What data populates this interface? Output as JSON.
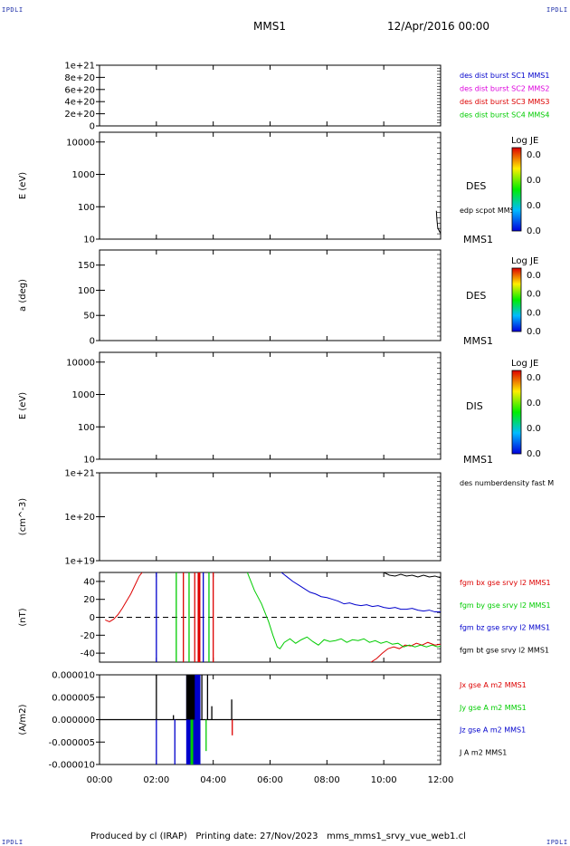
{
  "header": {
    "mission": "MMS1",
    "date": "12/Apr/2016 00:00",
    "corner_tl": "IPDLI",
    "corner_tr": "IPDLI",
    "corner_bl": "IPDLI",
    "corner_br": "IPDLI"
  },
  "footer": {
    "produced_by": "Produced by cl (IRAP)",
    "printing_date": "Printing date: 27/Nov/2023",
    "filename": "mms_mms1_srvy_vue_web1.cl"
  },
  "time_axis": {
    "ticks": [
      "00:00",
      "02:00",
      "04:00",
      "06:00",
      "08:00",
      "10:00",
      "12:00"
    ],
    "range_hours": [
      0,
      12
    ]
  },
  "colors": {
    "red": "#dd0000",
    "green": "#00cc00",
    "blue": "#0000cc",
    "magenta": "#dd00dd",
    "black": "#000000"
  },
  "chart_data": [
    {
      "id": "p1",
      "type": "line",
      "ylabel": "",
      "yticks": [
        "1e+21",
        "8e+20",
        "6e+20",
        "4e+20",
        "2e+20",
        "0"
      ],
      "ylim": [
        0,
        1e+21
      ],
      "dashed_zero": true,
      "legend": [
        {
          "label": "des dist burst SC1 MMS1",
          "color": "#0000cc"
        },
        {
          "label": "des dist burst SC2 MMS2",
          "color": "#dd00dd"
        },
        {
          "label": "des dist burst SC3 MMS3",
          "color": "#dd0000"
        },
        {
          "label": "des dist burst SC4 MMS4",
          "color": "#00cc00"
        }
      ]
    },
    {
      "id": "p2",
      "type": "heatmap",
      "scale": "log",
      "ylabel": "E (eV)",
      "yticks": [
        "10000",
        "1000",
        "100",
        "10"
      ],
      "ylim": [
        10,
        20000
      ],
      "label": "DES",
      "sublabel": "MMS1",
      "extra_label": "edp scpot MMS1",
      "colorbar": {
        "title": "Log JE",
        "ticks": [
          "0.0",
          "0.0",
          "0.0",
          "0.0"
        ]
      },
      "scpot_line": [
        [
          11.85,
          75
        ],
        [
          11.87,
          40
        ],
        [
          11.9,
          22
        ],
        [
          11.95,
          18
        ],
        [
          12.0,
          15
        ]
      ]
    },
    {
      "id": "p3",
      "type": "heatmap",
      "ylabel": "a (deg)",
      "yticks": [
        "150",
        "100",
        "50",
        "0"
      ],
      "ylim": [
        0,
        180
      ],
      "label": "DES",
      "sublabel": "MMS1",
      "colorbar": {
        "title": "Log JE",
        "ticks": [
          "0.0",
          "0.0",
          "0.0",
          "0.0"
        ]
      }
    },
    {
      "id": "p4",
      "type": "heatmap",
      "scale": "log",
      "ylabel": "E (eV)",
      "yticks": [
        "10000",
        "1000",
        "100",
        "10"
      ],
      "ylim": [
        10,
        20000
      ],
      "label": "DIS",
      "sublabel": "MMS1",
      "colorbar": {
        "title": "Log JE",
        "ticks": [
          "0.0",
          "0.0",
          "0.0",
          "0.0"
        ]
      }
    },
    {
      "id": "p5",
      "type": "line",
      "scale": "log",
      "ylabel": "(cm^-3)",
      "yticks": [
        "1e+21",
        "1e+20",
        "1e+19"
      ],
      "ylim": [
        1e+19,
        1e+21
      ],
      "legend": [
        {
          "label": "des numberdensity fast M",
          "color": "#000000"
        }
      ]
    },
    {
      "id": "p6",
      "type": "line",
      "ylabel": "(nT)",
      "yticks": [
        "40",
        "20",
        "0",
        "-20",
        "-40"
      ],
      "ylim": [
        -50,
        50
      ],
      "dashed_zero": true,
      "legend": [
        {
          "label": "fgm bx gse srvy l2 MMS1",
          "color": "#dd0000"
        },
        {
          "label": "fgm by gse srvy l2 MMS1",
          "color": "#00cc00"
        },
        {
          "label": "fgm bz gse srvy l2 MMS1",
          "color": "#0000cc"
        },
        {
          "label": "fgm bt gse srvy l2 MMS1",
          "color": "#000000"
        }
      ],
      "series": [
        {
          "name": "fgm bx gse srvy l2 MMS1",
          "color": "#dd0000",
          "segments": [
            [
              [
                0.2,
                -3
              ],
              [
                0.35,
                -5
              ],
              [
                0.5,
                -2
              ],
              [
                0.65,
                3
              ],
              [
                0.8,
                10
              ],
              [
                0.95,
                18
              ],
              [
                1.1,
                26
              ],
              [
                1.25,
                36
              ],
              [
                1.4,
                46
              ],
              [
                1.5,
                50
              ]
            ],
            [
              [
                9.55,
                -50
              ],
              [
                9.75,
                -46
              ],
              [
                9.95,
                -40
              ],
              [
                10.15,
                -35
              ],
              [
                10.35,
                -33
              ],
              [
                10.55,
                -35
              ],
              [
                10.75,
                -31
              ],
              [
                10.95,
                -32
              ],
              [
                11.15,
                -29
              ],
              [
                11.35,
                -31
              ],
              [
                11.55,
                -28
              ],
              [
                11.8,
                -31
              ],
              [
                12.0,
                -30
              ]
            ]
          ]
        },
        {
          "name": "fgm by gse srvy l2 MMS1",
          "color": "#00cc00",
          "segments": [
            [
              [
                5.2,
                50
              ],
              [
                5.45,
                30
              ],
              [
                5.7,
                15
              ],
              [
                5.95,
                -5
              ],
              [
                6.1,
                -20
              ],
              [
                6.25,
                -33
              ],
              [
                6.35,
                -35
              ],
              [
                6.5,
                -28
              ],
              [
                6.7,
                -24
              ],
              [
                6.9,
                -29
              ],
              [
                7.1,
                -25
              ],
              [
                7.3,
                -22
              ],
              [
                7.5,
                -27
              ],
              [
                7.7,
                -31
              ],
              [
                7.9,
                -25
              ],
              [
                8.1,
                -27
              ],
              [
                8.3,
                -26
              ],
              [
                8.5,
                -24
              ],
              [
                8.7,
                -28
              ],
              [
                8.9,
                -25
              ],
              [
                9.1,
                -26
              ],
              [
                9.3,
                -24
              ],
              [
                9.5,
                -28
              ],
              [
                9.7,
                -26
              ],
              [
                9.9,
                -29
              ],
              [
                10.1,
                -27
              ],
              [
                10.3,
                -30
              ],
              [
                10.5,
                -29
              ],
              [
                10.7,
                -33
              ],
              [
                10.9,
                -31
              ],
              [
                11.1,
                -33
              ],
              [
                11.3,
                -31
              ],
              [
                11.5,
                -33
              ],
              [
                11.7,
                -31
              ],
              [
                11.9,
                -33
              ],
              [
                12.0,
                -32
              ]
            ]
          ]
        },
        {
          "name": "fgm bz gse srvy l2 MMS1",
          "color": "#0000cc",
          "segments": [
            [
              [
                6.4,
                50
              ],
              [
                6.6,
                45
              ],
              [
                6.8,
                40
              ],
              [
                7.0,
                36
              ],
              [
                7.2,
                32
              ],
              [
                7.4,
                28
              ],
              [
                7.6,
                26
              ],
              [
                7.8,
                23
              ],
              [
                8.0,
                22
              ],
              [
                8.2,
                20
              ],
              [
                8.4,
                18
              ],
              [
                8.6,
                15
              ],
              [
                8.8,
                16
              ],
              [
                9.0,
                14
              ],
              [
                9.2,
                13
              ],
              [
                9.4,
                14
              ],
              [
                9.6,
                12
              ],
              [
                9.8,
                13
              ],
              [
                10.0,
                11
              ],
              [
                10.2,
                10
              ],
              [
                10.4,
                11
              ],
              [
                10.6,
                9
              ],
              [
                10.8,
                9
              ],
              [
                11.0,
                10
              ],
              [
                11.2,
                8
              ],
              [
                11.4,
                7
              ],
              [
                11.6,
                8
              ],
              [
                11.8,
                6
              ],
              [
                12.0,
                6
              ]
            ]
          ]
        },
        {
          "name": "fgm bt gse srvy l2 MMS1",
          "color": "#000000",
          "segments": [
            [
              [
                10.0,
                50
              ],
              [
                10.2,
                47
              ],
              [
                10.4,
                46
              ],
              [
                10.6,
                48
              ],
              [
                10.8,
                46
              ],
              [
                11.0,
                47
              ],
              [
                11.2,
                45
              ],
              [
                11.4,
                47
              ],
              [
                11.6,
                45
              ],
              [
                11.8,
                46
              ],
              [
                12.0,
                44
              ]
            ]
          ]
        }
      ],
      "vertical_spikes": [
        {
          "x": 2.0,
          "color": "#0000cc"
        },
        {
          "x": 2.7,
          "color": "#00cc00"
        },
        {
          "x": 2.95,
          "color": "#dd0000"
        },
        {
          "x": 3.15,
          "color": "#00cc00"
        },
        {
          "x": 3.35,
          "color": "#dd0000"
        },
        {
          "x": 3.5,
          "color": "#dd0000"
        },
        {
          "x": 3.65,
          "color": "#0000cc"
        },
        {
          "x": 3.85,
          "color": "#00cc00"
        },
        {
          "x": 4.0,
          "color": "#dd0000"
        }
      ]
    },
    {
      "id": "p7",
      "type": "line",
      "ylabel": "(A/m2)",
      "yticks": [
        "0.000010",
        "0.000005",
        "0.000000",
        "-0.000005",
        "-0.000010"
      ],
      "ylim": [
        -1e-05,
        1e-05
      ],
      "legend": [
        {
          "label": "Jx gse A m2 MMS1",
          "color": "#dd0000"
        },
        {
          "label": "Jy gse A m2 MMS1",
          "color": "#00cc00"
        },
        {
          "label": "Jz gse A m2 MMS1",
          "color": "#0000cc"
        },
        {
          "label": "J A m2 MMS1",
          "color": "#000000"
        }
      ],
      "spikes": [
        {
          "x": 2.0,
          "y": 1e-05,
          "color": "#000000"
        },
        {
          "x": 2.0,
          "y": -1e-05,
          "color": "#0000cc"
        },
        {
          "x": 2.6,
          "y": 1e-06,
          "color": "#000000"
        },
        {
          "x": 2.65,
          "y": -1e-05,
          "color": "#0000cc"
        },
        {
          "x": 3.2,
          "y": 1e-05,
          "color": "#000000"
        },
        {
          "x": 3.6,
          "y": 1e-05,
          "color": "#000000"
        },
        {
          "x": 3.8,
          "y": 1e-05,
          "color": "#000000"
        },
        {
          "x": 3.95,
          "y": 3e-06,
          "color": "#000000"
        },
        {
          "x": 3.75,
          "y": -7e-06,
          "color": "#00cc00"
        },
        {
          "x": 4.65,
          "y": 4.5e-06,
          "color": "#000000"
        },
        {
          "x": 4.67,
          "y": -3.5e-06,
          "color": "#dd0000"
        }
      ],
      "bands": [
        {
          "x0": 3.05,
          "x1": 3.55,
          "y0": -1e-05,
          "y1": 1e-05,
          "color": "#0000cc"
        }
      ]
    }
  ]
}
